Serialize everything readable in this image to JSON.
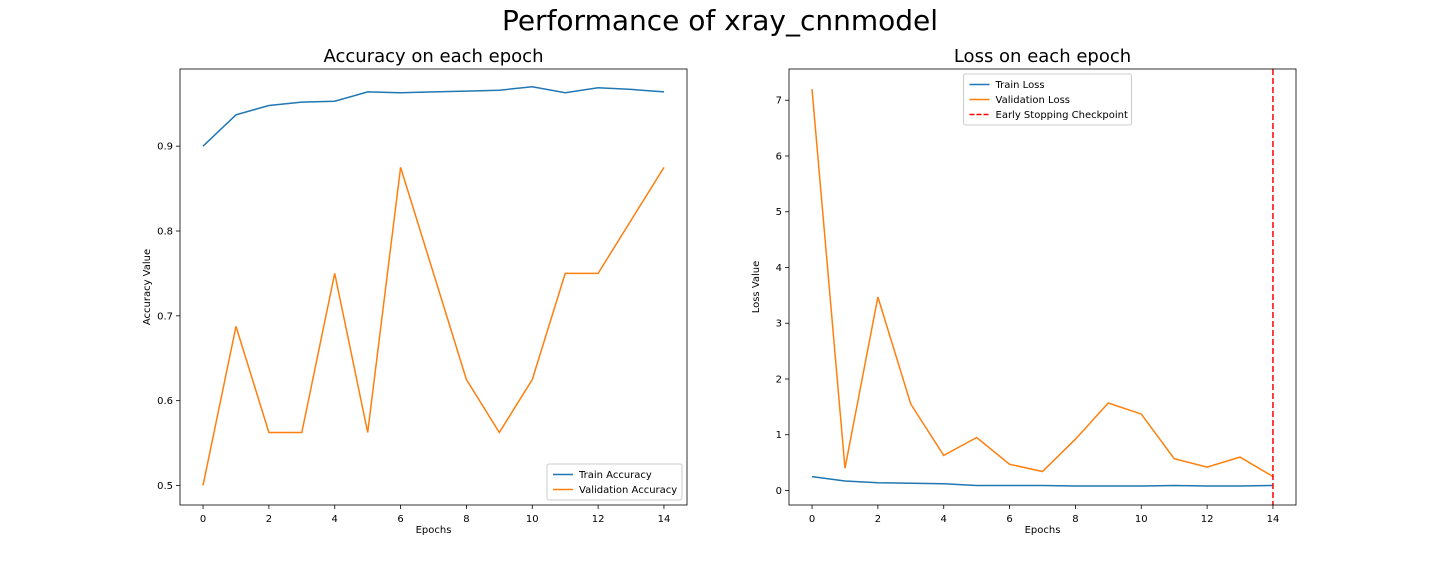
{
  "figure": {
    "title": "Performance of xray_cnnmodel"
  },
  "chart_data": [
    {
      "type": "line",
      "title": "Accuracy on each epoch",
      "xlabel": "Epochs",
      "ylabel": "Accuracy Value",
      "x": [
        0,
        1,
        2,
        3,
        4,
        5,
        6,
        7,
        8,
        9,
        10,
        11,
        12,
        13,
        14
      ],
      "xlim": [
        -0.7,
        14.7
      ],
      "ylim": [
        0.477,
        0.991
      ],
      "xticks": [
        0,
        2,
        4,
        6,
        8,
        10,
        12,
        14
      ],
      "yticks": [
        0.5,
        0.6,
        0.7,
        0.8,
        0.9
      ],
      "ytick_labels": [
        "0.5",
        "0.6",
        "0.7",
        "0.8",
        "0.9"
      ],
      "grid": false,
      "legend_position": "lower-right",
      "series": [
        {
          "name": "Train Accuracy",
          "color": "#1f77b4",
          "style": "solid",
          "values": [
            0.9,
            0.937,
            0.948,
            0.952,
            0.953,
            0.964,
            0.963,
            0.964,
            0.965,
            0.966,
            0.97,
            0.963,
            0.969,
            0.967,
            0.964
          ]
        },
        {
          "name": "Validation Accuracy",
          "color": "#ff7f0e",
          "style": "solid",
          "values": [
            0.5,
            0.6875,
            0.5625,
            0.5625,
            0.75,
            0.5625,
            0.875,
            0.75,
            0.625,
            0.5625,
            0.625,
            0.75,
            0.75,
            0.8125,
            0.875
          ]
        }
      ]
    },
    {
      "type": "line",
      "title": "Loss on each epoch",
      "xlabel": "Epochs",
      "ylabel": "Loss Value",
      "x": [
        0,
        1,
        2,
        3,
        4,
        5,
        6,
        7,
        8,
        9,
        10,
        11,
        12,
        13,
        14
      ],
      "xlim": [
        -0.7,
        14.7
      ],
      "ylim": [
        -0.26,
        7.56
      ],
      "xticks": [
        0,
        2,
        4,
        6,
        8,
        10,
        12,
        14
      ],
      "yticks": [
        0,
        1,
        2,
        3,
        4,
        5,
        6,
        7
      ],
      "ytick_labels": [
        "0",
        "1",
        "2",
        "3",
        "4",
        "5",
        "6",
        "7"
      ],
      "grid": false,
      "legend_position": "upper-center",
      "series": [
        {
          "name": "Train Loss",
          "color": "#1f77b4",
          "style": "solid",
          "values": [
            0.25,
            0.17,
            0.14,
            0.13,
            0.12,
            0.09,
            0.09,
            0.09,
            0.08,
            0.08,
            0.08,
            0.09,
            0.08,
            0.08,
            0.09
          ]
        },
        {
          "name": "Validation Loss",
          "color": "#ff7f0e",
          "style": "solid",
          "values": [
            7.2,
            0.4,
            3.47,
            1.55,
            0.63,
            0.95,
            0.47,
            0.34,
            0.92,
            1.57,
            1.37,
            0.57,
            0.42,
            0.6,
            0.25
          ]
        }
      ],
      "vlines": [
        {
          "name": "Early Stopping Checkpoint",
          "x": 14,
          "color": "#ff0000",
          "style": "dashed"
        }
      ]
    }
  ]
}
